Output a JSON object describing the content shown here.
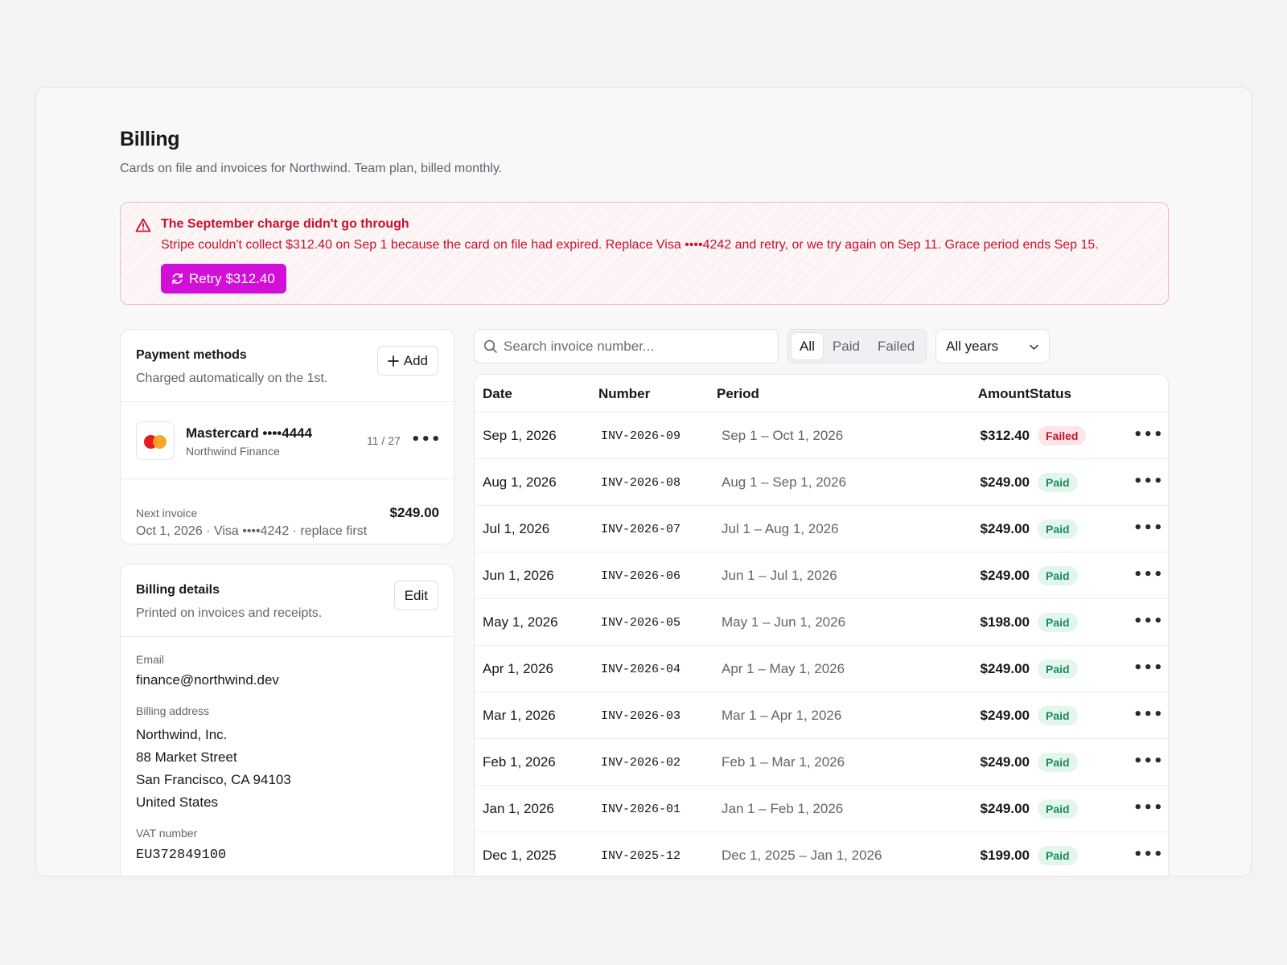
{
  "page": {
    "title": "Billing",
    "subtitle": "Cards on file and invoices for Northwind. Team plan, billed monthly."
  },
  "alert": {
    "title": "The September charge didn't go through",
    "body": "Stripe couldn't collect $312.40 on Sep 1 because the card on file had expired. Replace Visa ••••4242 and retry, or we try again on Sep 11. Grace period ends Sep 15.",
    "retry_label": "Retry $312.40",
    "icon": "warning-triangle-icon"
  },
  "payment_methods": {
    "title": "Payment methods",
    "subtitle": "Charged automatically on the 1st.",
    "add_label": "Add",
    "card": {
      "name": "Mastercard ••••4444",
      "holder": "Northwind Finance",
      "expiry": "11 / 27"
    },
    "next_invoice": {
      "label": "Next invoice",
      "detail": "Oct 1, 2026 · Visa ••••4242 · replace first",
      "amount": "$249.00"
    }
  },
  "billing_details": {
    "title": "Billing details",
    "subtitle": "Printed on invoices and receipts.",
    "edit_label": "Edit",
    "email_label": "Email",
    "email": "finance@northwind.dev",
    "address_label": "Billing address",
    "address": [
      "Northwind, Inc.",
      "88 Market Street",
      "San Francisco, CA 94103",
      "United States"
    ],
    "vat_label": "VAT number",
    "vat": "EU372849100"
  },
  "toolbar": {
    "search_placeholder": "Search invoice number...",
    "filters": [
      "All",
      "Paid",
      "Failed"
    ],
    "active_filter": "All",
    "year_select": "All years"
  },
  "table": {
    "columns": [
      "Date",
      "Number",
      "Period",
      "Amount",
      "Status"
    ],
    "rows": [
      {
        "date": "Sep 1, 2026",
        "number": "INV-2026-09",
        "period": "Sep 1 – Oct 1, 2026",
        "amount": "$312.40",
        "status": "Failed"
      },
      {
        "date": "Aug 1, 2026",
        "number": "INV-2026-08",
        "period": "Aug 1 – Sep 1, 2026",
        "amount": "$249.00",
        "status": "Paid"
      },
      {
        "date": "Jul 1, 2026",
        "number": "INV-2026-07",
        "period": "Jul 1 – Aug 1, 2026",
        "amount": "$249.00",
        "status": "Paid"
      },
      {
        "date": "Jun 1, 2026",
        "number": "INV-2026-06",
        "period": "Jun 1 – Jul 1, 2026",
        "amount": "$249.00",
        "status": "Paid"
      },
      {
        "date": "May 1, 2026",
        "number": "INV-2026-05",
        "period": "May 1 – Jun 1, 2026",
        "amount": "$198.00",
        "status": "Paid"
      },
      {
        "date": "Apr 1, 2026",
        "number": "INV-2026-04",
        "period": "Apr 1 – May 1, 2026",
        "amount": "$249.00",
        "status": "Paid"
      },
      {
        "date": "Mar 1, 2026",
        "number": "INV-2026-03",
        "period": "Mar 1 – Apr 1, 2026",
        "amount": "$249.00",
        "status": "Paid"
      },
      {
        "date": "Feb 1, 2026",
        "number": "INV-2026-02",
        "period": "Feb 1 – Mar 1, 2026",
        "amount": "$249.00",
        "status": "Paid"
      },
      {
        "date": "Jan 1, 2026",
        "number": "INV-2026-01",
        "period": "Jan 1 – Feb 1, 2026",
        "amount": "$249.00",
        "status": "Paid"
      },
      {
        "date": "Dec 1, 2025",
        "number": "INV-2025-12",
        "period": "Dec 1, 2025 – Jan 1, 2026",
        "amount": "$199.00",
        "status": "Paid"
      }
    ]
  },
  "colors": {
    "accent": "#d10fd8",
    "danger": "#c8102e",
    "success": "#1b8a5a"
  }
}
